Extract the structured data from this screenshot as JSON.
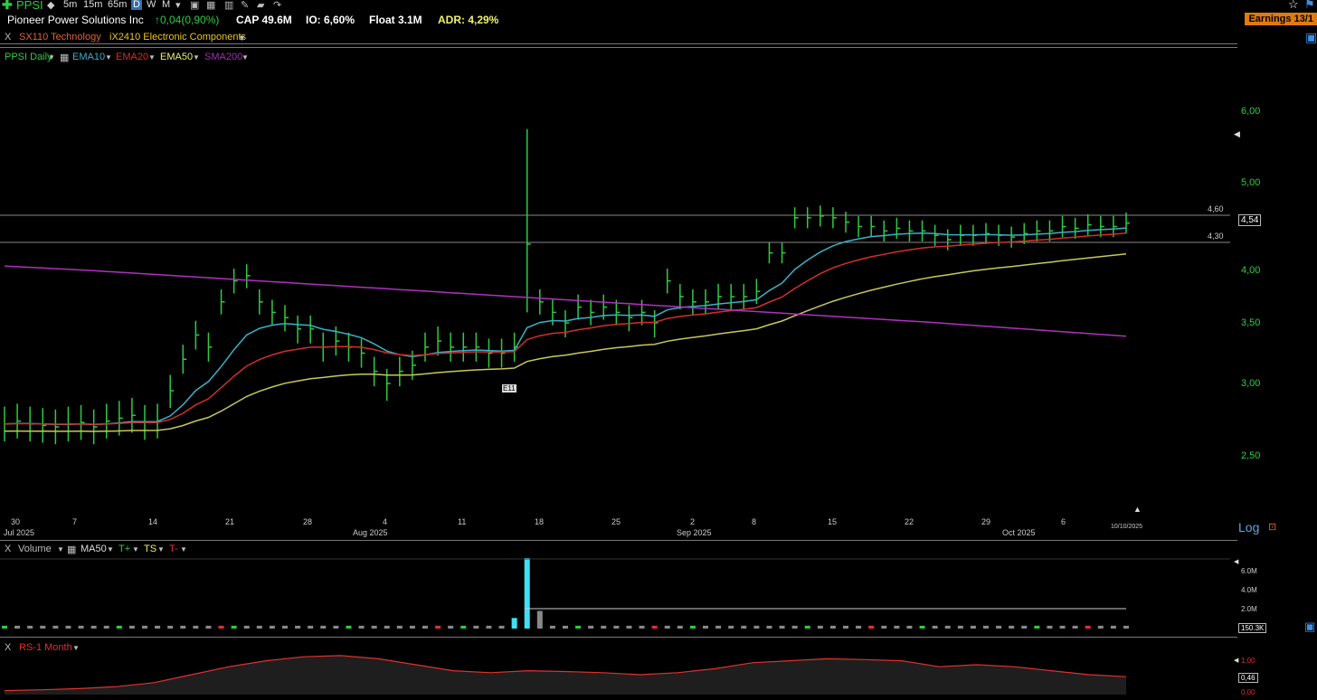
{
  "toolbar": {
    "ticker": "PPSI",
    "timeframes": [
      "5m",
      "15m",
      "65m",
      "D",
      "W",
      "M"
    ],
    "active_timeframe": "D"
  },
  "info": {
    "company": "Pioneer Power Solutions Inc",
    "change": "↑0,04(0,90%)",
    "cap": "CAP 49.6M",
    "io": "IO: 6,60%",
    "float": "Float 3.1M",
    "adr": "ADR: 4,29%",
    "earnings": "Earnings 13/1"
  },
  "sectors": {
    "close": "X",
    "sector": "SX110 Technology",
    "industry": "iX2410 Electronic Components"
  },
  "price_legend": {
    "symbol": "PPSI Daily",
    "ema10": "EMA10",
    "ema20": "EMA20",
    "ema50": "EMA50",
    "sma200": "SMA200"
  },
  "colors": {
    "ema10": "#3ab0c8",
    "ema20": "#d0302a",
    "ema50": "#c8c85a",
    "sma200": "#b030c0",
    "bar": "#2ecc40"
  },
  "axis": {
    "prices": [
      "6,00",
      "5,00",
      "4,00",
      "3,50",
      "3,00",
      "2,50"
    ],
    "level_high": "4,60",
    "level_low": "4,30",
    "last_price": "4,54",
    "log": "Log"
  },
  "dates": {
    "days": [
      "30",
      "7",
      "14",
      "21",
      "28",
      "4",
      "11",
      "18",
      "25",
      "2",
      "8",
      "15",
      "22",
      "29",
      "6"
    ],
    "months": [
      "Jul 2025",
      "Aug 2025",
      "Sep 2025",
      "Oct 2025"
    ],
    "last_date": "10/10/2025",
    "marker": "E11"
  },
  "volume_panel": {
    "close": "X",
    "label": "Volume",
    "ma": "MA50",
    "tplus": "T+",
    "ts": "TS",
    "tminus": "T-",
    "scale": [
      "6.0M",
      "4.0M",
      "2.0M"
    ],
    "current": "150.3K"
  },
  "rs_panel": {
    "close": "X",
    "label": "RS-1 Month",
    "scale_top": "1,00",
    "current": "0,46",
    "scale_bottom": "0,00"
  }
}
